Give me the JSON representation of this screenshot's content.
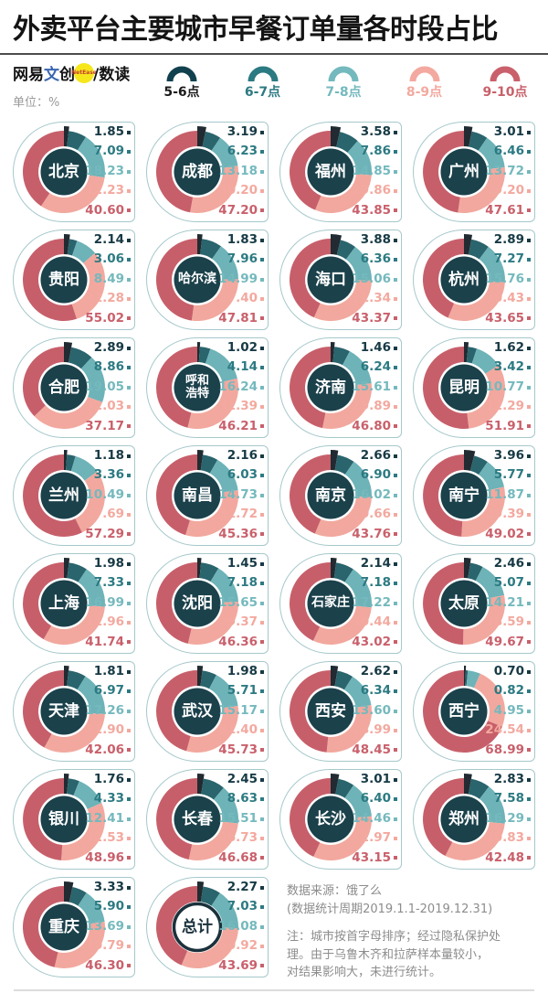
{
  "title": "外卖平台主要城市早餐订单量各时段占比",
  "brand": {
    "p1": "网易",
    "p2": "文",
    "p3": "创",
    "badge": "NetEase",
    "suffix": "/数读"
  },
  "unit_label": "单位：%",
  "colors": {
    "cell_border": "#a6c8cb",
    "center_circle": "#1b414b",
    "total_circle_bg": "#ffffff",
    "total_circle_border": "#1b313c",
    "title_divider": "#4c4c4c",
    "bottom_divider": "#dcdcdc",
    "badge_yellow": "#f6e71c"
  },
  "chart_data": {
    "type": "pie",
    "variant": "donut-small-multiples",
    "unit": "%",
    "title": "外卖平台主要城市早餐订单量各时段占比",
    "legend_position": "top",
    "categories": [
      {
        "label": "5-6点",
        "arc_color": "#11414e",
        "slice_color": "#212b31",
        "value_color": "#173a45",
        "label_color": "#1a1a1a"
      },
      {
        "label": "6-7点",
        "arc_color": "#2c7a82",
        "slice_color": "#2a646d",
        "value_color": "#2c7a82",
        "label_color": "#2c7a82"
      },
      {
        "label": "7-8点",
        "arc_color": "#74b9bd",
        "slice_color": "#6db3b8",
        "value_color": "#74b9bd",
        "label_color": "#74b9bd"
      },
      {
        "label": "8-9点",
        "arc_color": "#f3a99f",
        "slice_color": "#f2a89e",
        "value_color": "#f3a99f",
        "label_color": "#f3a99f"
      },
      {
        "label": "9-10点",
        "arc_color": "#c9606b",
        "slice_color": "#c75f6a",
        "value_color": "#c9606b",
        "label_color": "#c9606b"
      }
    ],
    "series": [
      {
        "name": "北京",
        "values": [
          1.85,
          7.09,
          18.23,
          32.23,
          40.6
        ]
      },
      {
        "name": "成都",
        "values": [
          3.19,
          6.23,
          13.18,
          30.2,
          47.2
        ]
      },
      {
        "name": "福州",
        "values": [
          3.58,
          7.86,
          14.85,
          29.86,
          43.85
        ]
      },
      {
        "name": "广州",
        "values": [
          3.01,
          6.46,
          13.72,
          29.2,
          47.61
        ]
      },
      {
        "name": "贵阳",
        "values": [
          2.14,
          3.06,
          8.49,
          31.28,
          55.02
        ]
      },
      {
        "name": "哈尔滨",
        "values": [
          1.83,
          7.96,
          14.99,
          27.4,
          47.81
        ]
      },
      {
        "name": "海口",
        "values": [
          3.88,
          6.36,
          15.06,
          31.34,
          43.37
        ]
      },
      {
        "name": "杭州",
        "values": [
          2.89,
          7.27,
          15.76,
          30.43,
          43.65
        ]
      },
      {
        "name": "合肥",
        "values": [
          2.89,
          8.86,
          19.05,
          32.03,
          37.17
        ]
      },
      {
        "name": "呼和浩特",
        "values": [
          1.02,
          4.14,
          16.24,
          32.39,
          46.21
        ]
      },
      {
        "name": "济南",
        "values": [
          1.46,
          6.24,
          15.61,
          29.89,
          46.8
        ]
      },
      {
        "name": "昆明",
        "values": [
          1.62,
          3.42,
          10.77,
          32.29,
          51.91
        ]
      },
      {
        "name": "兰州",
        "values": [
          1.18,
          3.36,
          10.49,
          27.69,
          57.29
        ]
      },
      {
        "name": "南昌",
        "values": [
          2.16,
          6.03,
          14.73,
          31.72,
          45.36
        ]
      },
      {
        "name": "南京",
        "values": [
          2.66,
          6.9,
          16.02,
          30.66,
          43.76
        ]
      },
      {
        "name": "南宁",
        "values": [
          3.96,
          5.77,
          11.87,
          29.39,
          49.02
        ]
      },
      {
        "name": "上海",
        "values": [
          1.98,
          7.33,
          16.99,
          31.96,
          41.74
        ]
      },
      {
        "name": "沈阳",
        "values": [
          1.45,
          7.18,
          15.65,
          29.37,
          46.36
        ]
      },
      {
        "name": "石家庄",
        "values": [
          2.14,
          7.18,
          17.22,
          30.44,
          43.02
        ]
      },
      {
        "name": "太原",
        "values": [
          2.46,
          5.07,
          14.21,
          28.59,
          49.67
        ]
      },
      {
        "name": "天津",
        "values": [
          1.81,
          6.97,
          17.26,
          31.9,
          42.06
        ]
      },
      {
        "name": "武汉",
        "values": [
          1.98,
          5.71,
          15.17,
          31.4,
          45.73
        ]
      },
      {
        "name": "西安",
        "values": [
          2.62,
          6.34,
          13.6,
          28.99,
          48.45
        ]
      },
      {
        "name": "西宁",
        "values": [
          0.7,
          0.82,
          4.95,
          24.54,
          68.99
        ]
      },
      {
        "name": "银川",
        "values": [
          1.76,
          4.33,
          12.41,
          32.53,
          48.96
        ]
      },
      {
        "name": "长春",
        "values": [
          2.45,
          8.63,
          15.51,
          26.73,
          46.68
        ]
      },
      {
        "name": "长沙",
        "values": [
          3.01,
          6.4,
          14.46,
          32.97,
          43.15
        ]
      },
      {
        "name": "郑州",
        "values": [
          2.83,
          7.58,
          16.29,
          30.83,
          42.48
        ]
      },
      {
        "name": "重庆",
        "values": [
          3.33,
          5.9,
          13.69,
          30.79,
          46.3
        ]
      },
      {
        "name": "总计",
        "values": [
          2.27,
          7.03,
          16.08,
          30.92,
          43.69
        ],
        "is_total": true
      }
    ]
  },
  "footer": {
    "source_line1": "数据来源：饿了么",
    "source_line2": "(数据统计周期2019.1.1-2019.12.31)",
    "note_line1": "注：城市按首字母排序；经过隐私保护处",
    "note_line2": "理。由于乌鲁木齐和拉萨样本量较小，",
    "note_line3": "对结果影响大，未进行统计。"
  }
}
